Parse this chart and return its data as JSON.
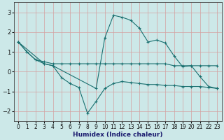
{
  "xlabel": "Humidex (Indice chaleur)",
  "xlim": [
    -0.5,
    23.5
  ],
  "ylim": [
    -2.5,
    3.5
  ],
  "yticks": [
    -2,
    -1,
    0,
    1,
    2,
    3
  ],
  "xticks": [
    0,
    1,
    2,
    3,
    4,
    5,
    6,
    7,
    8,
    9,
    10,
    11,
    12,
    13,
    14,
    15,
    16,
    17,
    18,
    19,
    20,
    21,
    22,
    23
  ],
  "bg_color": "#cce8e8",
  "grid_color_v": "#dba0a0",
  "grid_color_h": "#dba0a0",
  "line_color": "#1a7070",
  "lines": [
    {
      "x": [
        0,
        1,
        2,
        3,
        4,
        5,
        6,
        7,
        8,
        9,
        10,
        11,
        12,
        13,
        14,
        15,
        16,
        17,
        18,
        19,
        20,
        21,
        22,
        23
      ],
      "y": [
        1.5,
        1.0,
        0.6,
        0.5,
        0.4,
        0.4,
        0.4,
        0.4,
        0.4,
        0.4,
        0.4,
        0.4,
        0.4,
        0.4,
        0.4,
        0.4,
        0.4,
        0.4,
        0.3,
        0.3,
        0.3,
        0.3,
        0.3,
        0.3
      ]
    },
    {
      "x": [
        0,
        1,
        2,
        3,
        4,
        5,
        6,
        7,
        8,
        9,
        10,
        11,
        12,
        13,
        14,
        15,
        16,
        17,
        18,
        19,
        20,
        21,
        22,
        23
      ],
      "y": [
        1.5,
        1.0,
        0.6,
        0.4,
        0.3,
        -0.3,
        -0.6,
        -0.8,
        -2.1,
        -1.5,
        -0.85,
        -0.6,
        -0.5,
        -0.55,
        -0.6,
        -0.65,
        -0.65,
        -0.7,
        -0.7,
        -0.75,
        -0.75,
        -0.75,
        -0.8,
        -0.85
      ]
    },
    {
      "x": [
        0,
        3,
        4,
        9,
        10,
        11,
        12,
        13,
        14,
        15,
        16,
        17,
        18,
        19,
        20,
        21,
        22,
        23
      ],
      "y": [
        1.5,
        0.4,
        0.3,
        -0.85,
        1.7,
        2.85,
        2.75,
        2.6,
        2.2,
        1.5,
        1.6,
        1.45,
        0.8,
        0.25,
        0.3,
        -0.25,
        -0.75,
        -0.85
      ]
    }
  ]
}
